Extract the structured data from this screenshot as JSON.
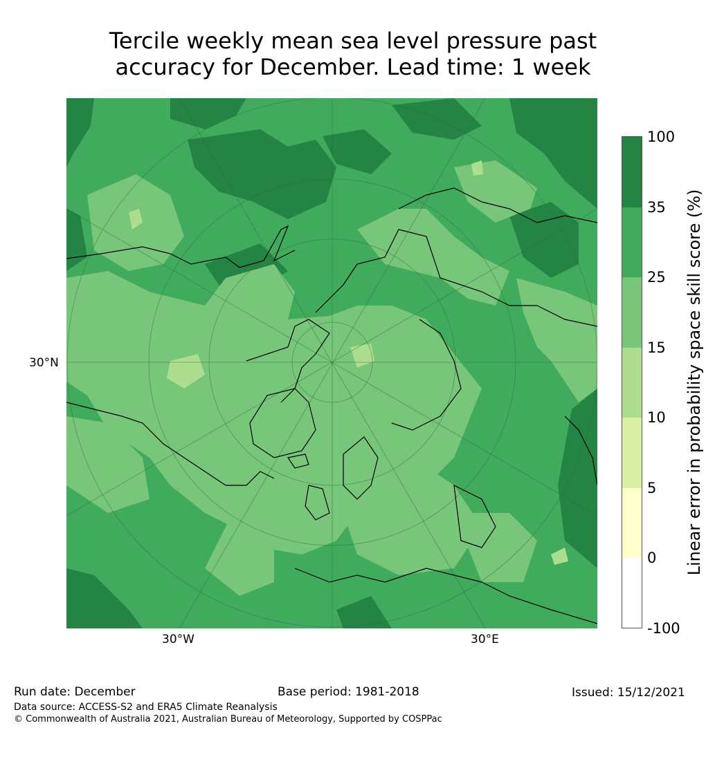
{
  "title_line1": "Tercile weekly mean sea level pressure past",
  "title_line2": "accuracy for December. Lead time: 1 week",
  "map": {
    "projection": "north polar stereographic",
    "lat_label": "30°N",
    "lon_label_west": "30°W",
    "lon_label_east": "30°E"
  },
  "colorbar": {
    "title": "Linear error in probability space skill score (%)",
    "levels": [
      "100",
      "35",
      "25",
      "15",
      "10",
      "5",
      "0",
      "-100"
    ],
    "colors": [
      "#238443",
      "#41ab5d",
      "#78c679",
      "#addd8e",
      "#d9f0a3",
      "#ffffcc",
      "#ffffff"
    ]
  },
  "footer": {
    "run_date": "Run date: December",
    "base_period": "Base period: 1981-2018",
    "issued": "Issued: 15/12/2021",
    "data_source": "Data source: ACCESS-S2 and ERA5 Climate Reanalysis",
    "copyright": "© Commonwealth of Australia 2021, Australian Bureau of Meteorology, Supported by COSPPac"
  }
}
